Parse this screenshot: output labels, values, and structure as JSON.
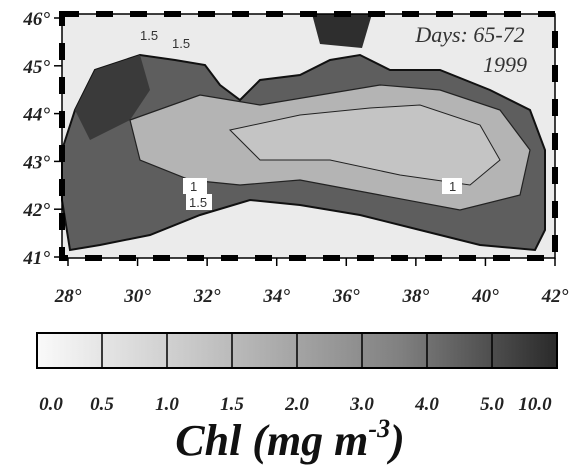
{
  "map": {
    "annotation": [
      "Days: 65-72",
      "1999"
    ],
    "lon_ticks": [
      {
        "value": 28,
        "label": "28°"
      },
      {
        "value": 30,
        "label": "30°"
      },
      {
        "value": 32,
        "label": "32°"
      },
      {
        "value": 34,
        "label": "34°"
      },
      {
        "value": 36,
        "label": "36°"
      },
      {
        "value": 38,
        "label": "38°"
      },
      {
        "value": 40,
        "label": "40°"
      },
      {
        "value": 42,
        "label": "42°"
      }
    ],
    "lat_ticks": [
      {
        "value": 41,
        "label": "41°"
      },
      {
        "value": 42,
        "label": "42°"
      },
      {
        "value": 43,
        "label": "43°"
      },
      {
        "value": 44,
        "label": "44°"
      },
      {
        "value": 45,
        "label": "45°"
      },
      {
        "value": 46,
        "label": "46°"
      }
    ],
    "contour_labels": [
      "1.5",
      "1.5",
      "1",
      "1.5",
      "1"
    ]
  },
  "colorbar": {
    "ticks": [
      {
        "value": 0,
        "label": "0.0"
      },
      {
        "value": 0.5,
        "label": "0.5"
      },
      {
        "value": 1,
        "label": "1.0"
      },
      {
        "value": 1.5,
        "label": "1.5"
      },
      {
        "value": 2,
        "label": "2.0"
      },
      {
        "value": 3,
        "label": "3.0"
      },
      {
        "value": 4,
        "label": "4.0"
      },
      {
        "value": 5,
        "label": "5.0"
      },
      {
        "value": 10,
        "label": "10.0"
      }
    ],
    "title": "Chl (mg m",
    "title_sup": "-3",
    "title_end": ")"
  }
}
